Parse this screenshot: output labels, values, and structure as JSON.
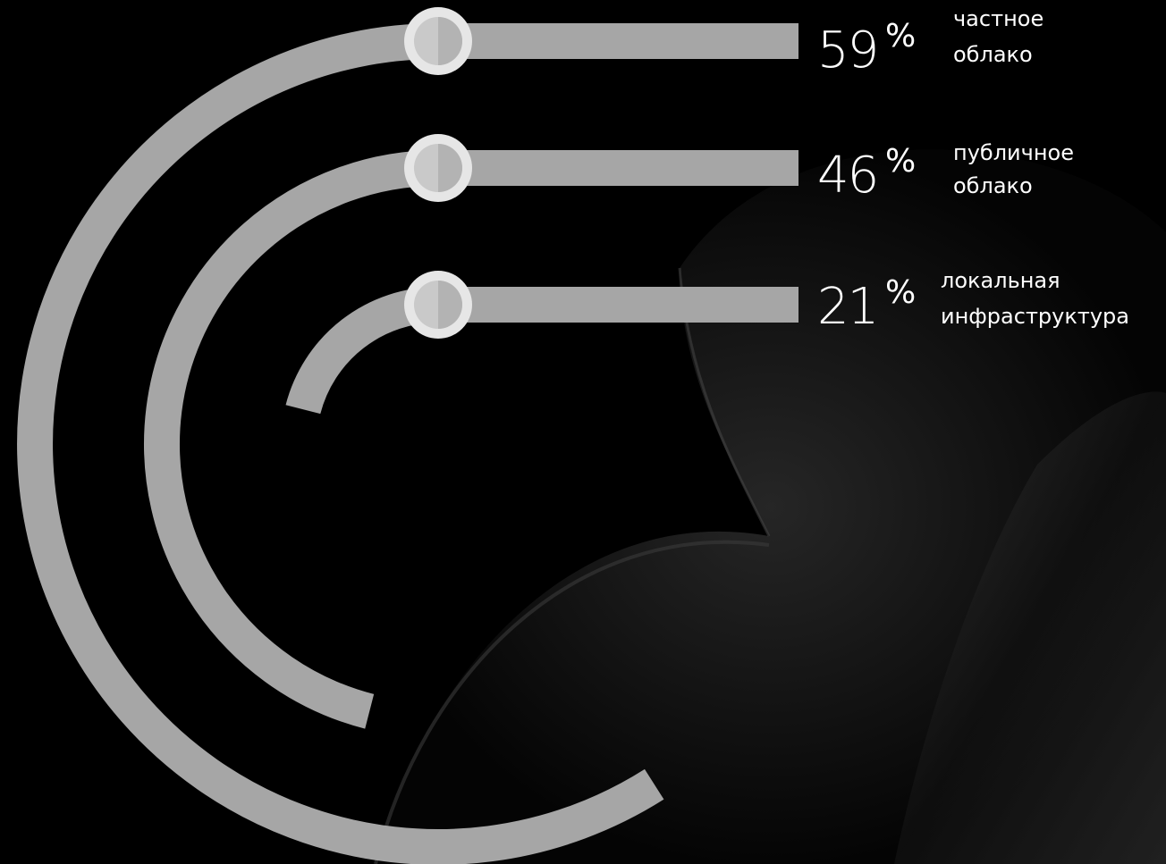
{
  "chart_data": {
    "type": "radial-bar",
    "max_percent": 100,
    "series": [
      {
        "percent": 59,
        "value_text": "59",
        "unit": "%",
        "label_lines": [
          "частное",
          "облако"
        ]
      },
      {
        "percent": 46,
        "value_text": "46",
        "unit": "%",
        "label_lines": [
          "публичное",
          "облако"
        ]
      },
      {
        "percent": 21,
        "value_text": "21",
        "unit": "%",
        "label_lines": [
          "локальная",
          "инфраструктура"
        ]
      }
    ]
  },
  "colors": {
    "background": "#000000",
    "track": "#a6a6a6",
    "knob_ring": "#e6e6e6",
    "knob_fill": "#c9c9c9",
    "text": "#ffffff"
  }
}
